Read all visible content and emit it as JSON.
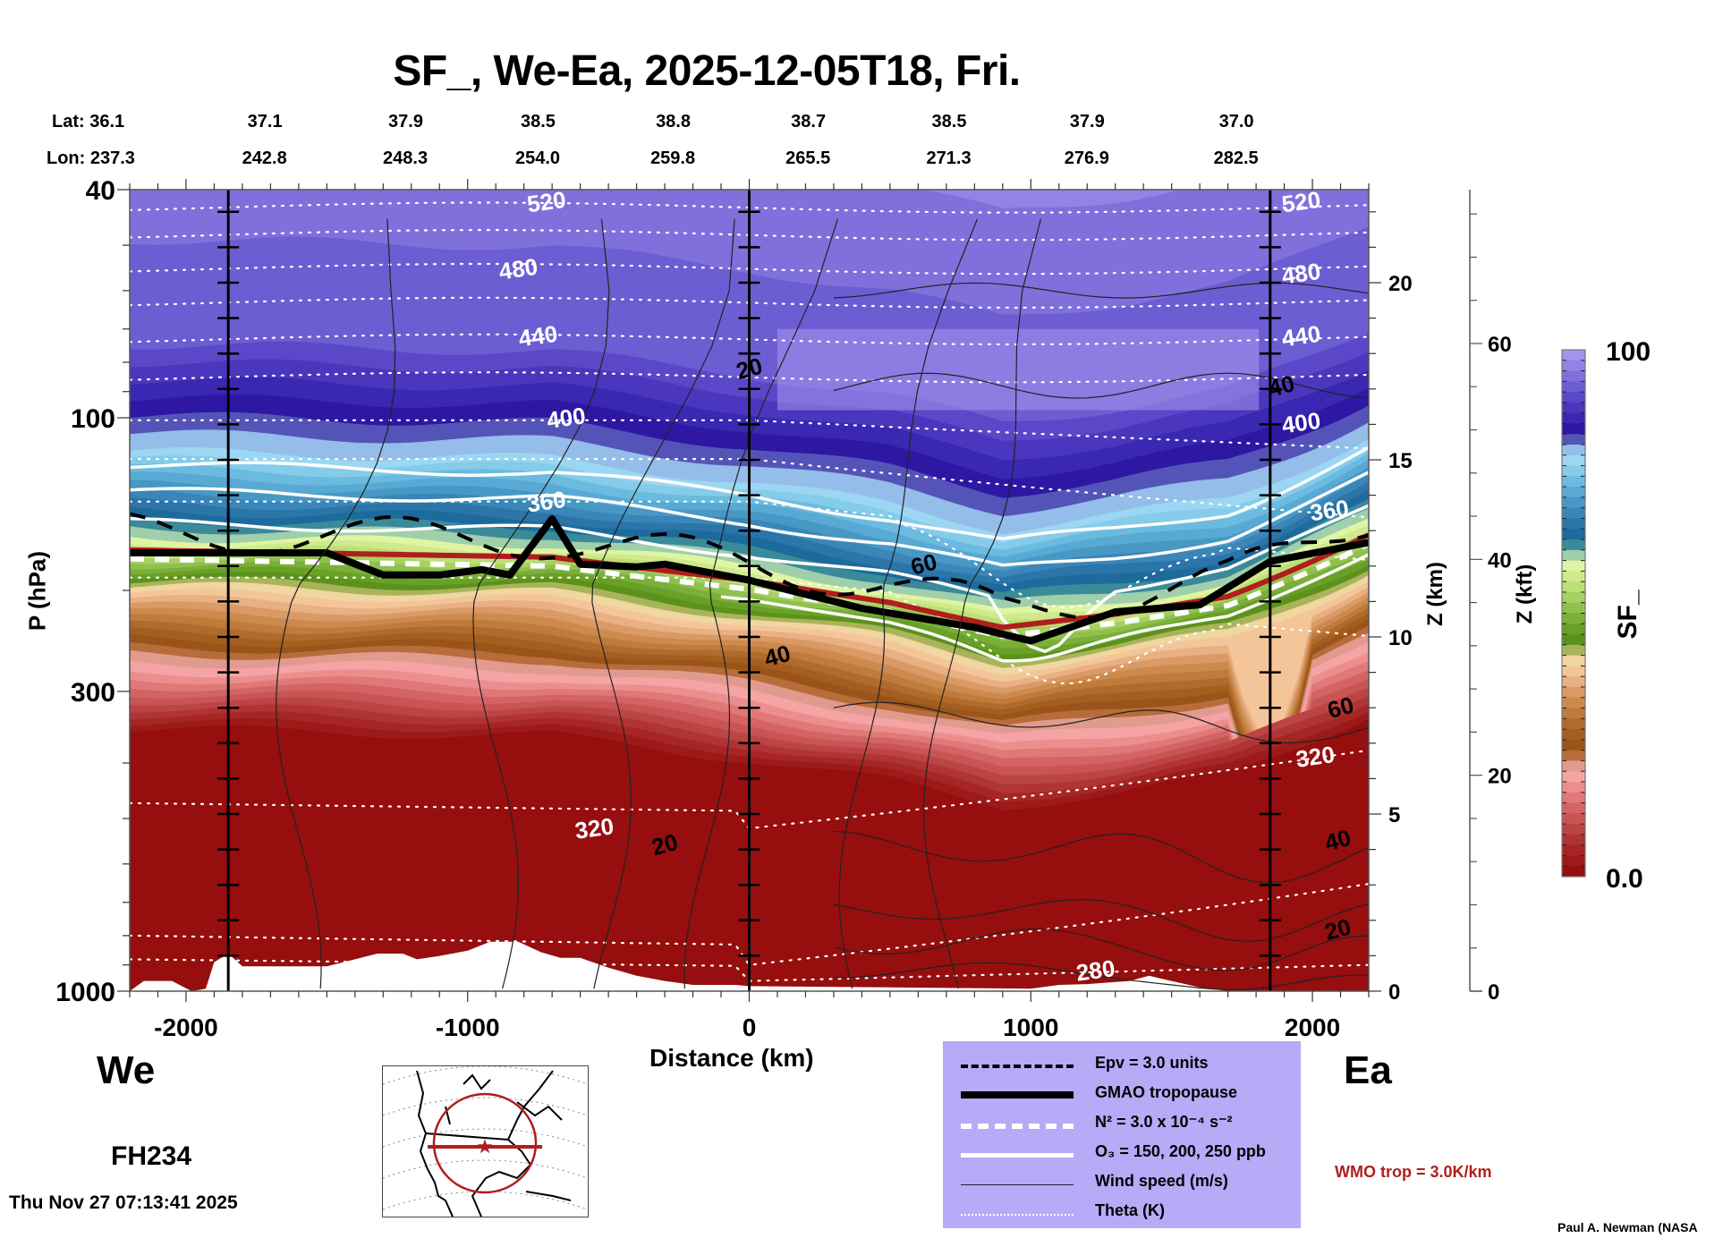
{
  "chart_data": {
    "type": "heatmap",
    "title": "SF_, We-Ea, 2025-12-05T18, Fri.",
    "xlabel": "Distance (km)",
    "ylabel": "P (hPa)",
    "y2label": "Z (km)",
    "y3label": "Z (kft)",
    "colorbar_label": "SF_",
    "colorbar_range": [
      0.0,
      100
    ],
    "colorbar_ticks": [
      "100",
      "0.0"
    ],
    "colorbar_colors": [
      "#a493ee",
      "#9283e6",
      "#8070dc",
      "#6d5dd2",
      "#5b48c8",
      "#4a37bd",
      "#3a27b2",
      "#2d17a3",
      "#5454b8",
      "#94bde9",
      "#9bd6f2",
      "#85cbea",
      "#6bbbe0",
      "#58a9d3",
      "#4898c5",
      "#3a86b8",
      "#2b75a9",
      "#1d6a9c",
      "#3a8a9a",
      "#9fcfab",
      "#dff5a3",
      "#cfe98c",
      "#bcdf76",
      "#a6d162",
      "#8fc14d",
      "#7aaf39",
      "#69a026",
      "#5c921c",
      "#a9b45a",
      "#f0d6a0",
      "#f5c59a",
      "#e8b083",
      "#d99a66",
      "#cc8a4e",
      "#bf7a3c",
      "#b06a2c",
      "#a45e1f",
      "#9a5419",
      "#b86c3a",
      "#e19a8e",
      "#f4a4a4",
      "#ed8e8e",
      "#e07878",
      "#d46464",
      "#c85454",
      "#bc4444",
      "#b03434",
      "#a62626",
      "#9c1a1a",
      "#960e0e"
    ],
    "x_range": [
      -2200,
      2200
    ],
    "x_ticks": [
      -2000,
      -1000,
      0,
      1000,
      2000
    ],
    "y_pressure_ticks": [
      40,
      100,
      300,
      1000
    ],
    "y_range_hPa": [
      1000,
      40
    ],
    "z_km_ticks": [
      0,
      5,
      10,
      15,
      20
    ],
    "z_kft_ticks": [
      0,
      20,
      40,
      60
    ],
    "vertical_markers_km": [
      -1850,
      0,
      1850
    ],
    "lat": [
      "36.1",
      "37.1",
      "37.9",
      "38.5",
      "38.8",
      "38.7",
      "38.5",
      "37.9",
      "37.0"
    ],
    "lon": [
      "237.3",
      "242.8",
      "248.3",
      "254.0",
      "259.8",
      "265.5",
      "271.3",
      "276.9",
      "282.5"
    ],
    "latlon_x_km": [
      -2200,
      -1750,
      -1250,
      -780,
      -300,
      180,
      680,
      1170,
      1700
    ],
    "theta_labels": [
      {
        "text": "520",
        "x": -720,
        "p": 42
      },
      {
        "text": "520",
        "x": 1960,
        "p": 42
      },
      {
        "text": "480",
        "x": -820,
        "p": 55
      },
      {
        "text": "480",
        "x": 1960,
        "p": 56
      },
      {
        "text": "440",
        "x": -750,
        "p": 72
      },
      {
        "text": "440",
        "x": 1960,
        "p": 72
      },
      {
        "text": "400",
        "x": -650,
        "p": 100
      },
      {
        "text": "400",
        "x": 1960,
        "p": 102
      },
      {
        "text": "360",
        "x": -720,
        "p": 140
      },
      {
        "text": "360",
        "x": 2060,
        "p": 145
      },
      {
        "text": "320",
        "x": -550,
        "p": 520
      },
      {
        "text": "320",
        "x": 2010,
        "p": 390
      },
      {
        "text": "280",
        "x": 1230,
        "p": 920
      }
    ],
    "wind_labels": [
      {
        "text": "20",
        "x": 0,
        "p": 82
      },
      {
        "text": "40",
        "x": 1890,
        "p": 88
      },
      {
        "text": "60",
        "x": 620,
        "p": 180
      },
      {
        "text": "40",
        "x": 100,
        "p": 260
      },
      {
        "text": "60",
        "x": 2100,
        "p": 320
      },
      {
        "text": "20",
        "x": -300,
        "p": 555
      },
      {
        "text": "40",
        "x": 2090,
        "p": 545
      },
      {
        "text": "20",
        "x": 2090,
        "p": 780
      }
    ],
    "theta_levels_K": [
      280,
      320,
      360,
      400,
      440,
      480,
      520
    ],
    "tropopause_hPa": [
      {
        "x": -2200,
        "p": 172
      },
      {
        "x": -1500,
        "p": 172
      },
      {
        "x": -1300,
        "p": 188
      },
      {
        "x": -1100,
        "p": 188
      },
      {
        "x": -950,
        "p": 184
      },
      {
        "x": -850,
        "p": 188
      },
      {
        "x": -700,
        "p": 150
      },
      {
        "x": -600,
        "p": 180
      },
      {
        "x": -400,
        "p": 182
      },
      {
        "x": -300,
        "p": 180
      },
      {
        "x": 0,
        "p": 192
      },
      {
        "x": 400,
        "p": 215
      },
      {
        "x": 800,
        "p": 232
      },
      {
        "x": 1000,
        "p": 245
      },
      {
        "x": 1300,
        "p": 218
      },
      {
        "x": 1600,
        "p": 212
      },
      {
        "x": 1850,
        "p": 178
      },
      {
        "x": 2200,
        "p": 165
      }
    ],
    "wmo_trop_hPa": [
      {
        "x": -2200,
        "p": 170
      },
      {
        "x": -700,
        "p": 175
      },
      {
        "x": 0,
        "p": 192
      },
      {
        "x": 500,
        "p": 210
      },
      {
        "x": 900,
        "p": 232
      },
      {
        "x": 1300,
        "p": 220
      },
      {
        "x": 1700,
        "p": 205
      },
      {
        "x": 2200,
        "p": 160
      }
    ]
  },
  "labels": {
    "lat_prefix": "Lat:",
    "lon_prefix": "Lon:",
    "west": "We",
    "east": "Ea",
    "forecast_hour": "FH234",
    "timestamp": "Thu Nov 27 07:13:41 2025",
    "wmo_trop": "WMO trop = 3.0K/km",
    "author": "Paul A. Newman (NASA"
  },
  "legend": [
    {
      "label": "Epv = 3.0 units",
      "style": "dashed-black"
    },
    {
      "label": "GMAO tropopause",
      "style": "thick-black"
    },
    {
      "label": "N² = 3.0 x 10⁻⁴ s⁻²",
      "style": "dashed-white"
    },
    {
      "label": "O₃ = 150, 200, 250 ppb",
      "style": "solid-white"
    },
    {
      "label": "Wind speed (m/s)",
      "style": "thin-black"
    },
    {
      "label": "Theta (K)",
      "style": "dotted-white"
    }
  ],
  "colors": {
    "legend_bg": "#b8aaf7",
    "wmo_trop": "#b01e1e",
    "stratosphere_top": "#b8aaf7",
    "surface_red": "#960e0e"
  }
}
